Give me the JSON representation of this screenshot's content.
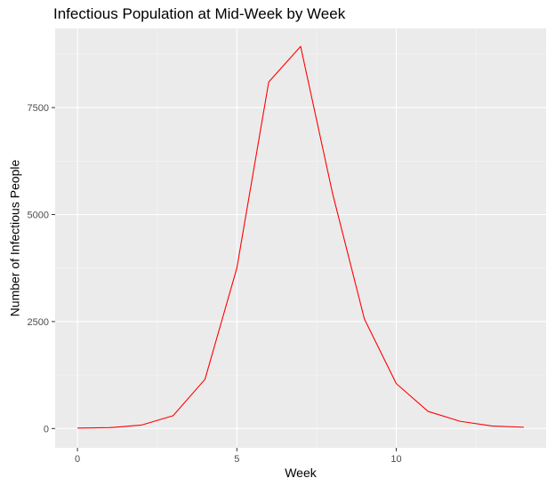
{
  "chart_data": {
    "type": "line",
    "title": "Infectious Population at Mid-Week by Week",
    "xlabel": "Week",
    "ylabel": "Number of Infectious People",
    "xlim": [
      -0.7,
      14.7
    ],
    "ylim": [
      -450,
      9350
    ],
    "x_ticks": [
      0,
      5,
      10
    ],
    "y_ticks": [
      0,
      2500,
      5000,
      7500
    ],
    "x_tick_labels": [
      "0",
      "5",
      "10"
    ],
    "y_tick_labels": [
      "0",
      "2500",
      "5000",
      "7500"
    ],
    "grid": true,
    "series": [
      {
        "color": "#ff0000",
        "x": [
          0,
          1,
          2,
          3,
          4,
          5,
          6,
          7,
          8,
          9,
          10,
          11,
          12,
          13,
          14
        ],
        "y": [
          10,
          20,
          80,
          300,
          1150,
          3750,
          8100,
          8930,
          5500,
          2560,
          1050,
          400,
          170,
          60,
          30
        ]
      }
    ]
  }
}
